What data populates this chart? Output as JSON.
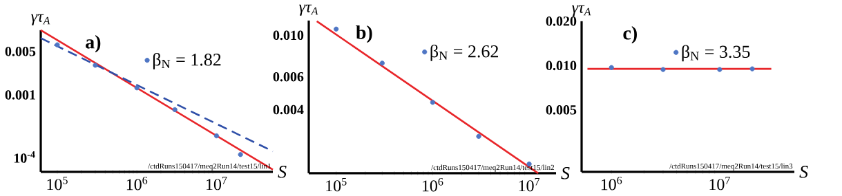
{
  "chart_data": [
    {
      "type": "scatter",
      "xlabel": "S",
      "ylabel": "γτ$_{A}$",
      "log": "xy",
      "legend": "top",
      "annotations": [
        "a)",
        "/ctdRuns150417/meq2Run14/test15/lin1"
      ],
      "xlim": [
        62000,
        51000000
      ],
      "ylim": [
        5.8e-05,
        0.011
      ],
      "xticks": [
        {
          "value": 100000,
          "label": "10$^{5}$"
        },
        {
          "value": 1000000,
          "label": "10$^{6}$"
        },
        {
          "value": 10000000,
          "label": "10$^{7}$"
        }
      ],
      "yticks": [
        {
          "value": 0.005,
          "label": "0.005"
        },
        {
          "value": 0.001,
          "label": "0.001"
        },
        {
          "value": 0.0001,
          "label": "10$^{-4}$"
        }
      ],
      "series": [
        {
          "name": "β$_{N}$ = 1.82",
          "type": "scatter",
          "marker": "circle",
          "color": "#4f76c4",
          "x": [
            100000,
            300000,
            1000000,
            3000000,
            10000000,
            20000000
          ],
          "values": [
            0.0064,
            0.003,
            0.0013,
            0.00058,
            0.00022,
            0.00011
          ]
        },
        {
          "type": "line",
          "color": "#e8262a",
          "line_style": "solid",
          "x": [
            62000,
            51000000
          ],
          "values": [
            0.011,
            6.3e-05
          ]
        },
        {
          "type": "line",
          "color": "#2f4fa8",
          "line_style": "dashed",
          "x": [
            62000,
            51000000
          ],
          "values": [
            0.0082,
            0.000124
          ]
        }
      ]
    },
    {
      "type": "scatter",
      "xlabel": "S",
      "ylabel": "γτ$_{A}$",
      "log": "xy",
      "legend": "top",
      "annotations": [
        "b)",
        "/ctdRuns150417/meq2Run14/test15/lin2"
      ],
      "xlim": [
        52000,
        19000000
      ],
      "ylim": [
        0.00183,
        0.012
      ],
      "xticks": [
        {
          "value": 100000,
          "label": "10$^{5}$"
        },
        {
          "value": 1000000,
          "label": "10$^{6}$"
        },
        {
          "value": 10000000,
          "label": "10$^{7}$"
        }
      ],
      "yticks": [
        {
          "value": 0.01,
          "label": "0.010"
        },
        {
          "value": 0.006,
          "label": "0.006"
        },
        {
          "value": 0.004,
          "label": "0.004"
        }
      ],
      "series": [
        {
          "name": "β$_{N}$ = 2.62",
          "type": "scatter",
          "marker": "circle",
          "color": "#4f76c4",
          "x": [
            100000,
            300000,
            1000000,
            3000000,
            10000000
          ],
          "values": [
            0.0108,
            0.0071,
            0.00438,
            0.00288,
            0.00205
          ]
        },
        {
          "type": "line",
          "color": "#e8262a",
          "line_style": "solid",
          "x": [
            63000,
            12400000
          ],
          "values": [
            0.0119,
            0.00183
          ]
        }
      ]
    },
    {
      "type": "scatter",
      "xlabel": "S",
      "ylabel": "γτ$_{A}$",
      "log": "xy",
      "legend": "top",
      "annotations": [
        "c)",
        "/ctdRuns150417/meq2Run14/test15/lin3"
      ],
      "xlim": [
        530000,
        49000000
      ],
      "ylim": [
        0.0019,
        0.02
      ],
      "xticks": [
        {
          "value": 1000000,
          "label": "10$^{6}$"
        },
        {
          "value": 10000000,
          "label": "10$^{7}$"
        }
      ],
      "yticks": [
        {
          "value": 0.02,
          "label": "0.020"
        },
        {
          "value": 0.01,
          "label": "0.010"
        },
        {
          "value": 0.005,
          "label": "0.005"
        }
      ],
      "series": [
        {
          "name": "β$_{N}$ = 3.35",
          "type": "scatter",
          "marker": "circle",
          "color": "#4f76c4",
          "x": [
            1000000,
            3000000,
            10000000,
            20000000
          ],
          "values": [
            0.0097,
            0.0094,
            0.0094,
            0.0095
          ]
        },
        {
          "type": "line",
          "color": "#e8262a",
          "line_style": "solid",
          "x": [
            600000,
            30000000
          ],
          "values": [
            0.0095,
            0.0095
          ]
        }
      ]
    }
  ]
}
